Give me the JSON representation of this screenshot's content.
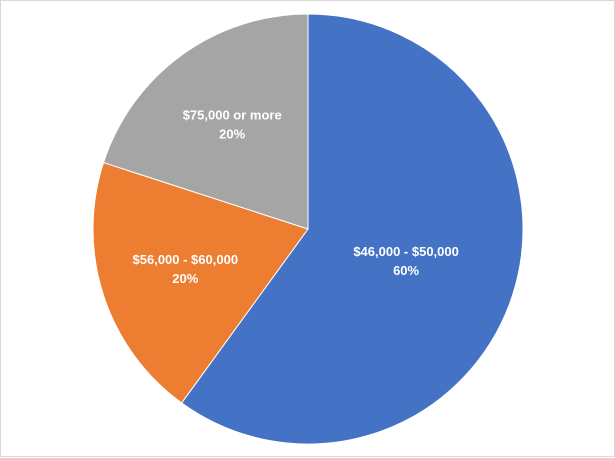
{
  "chart_data": {
    "type": "pie",
    "title": "",
    "slices": [
      {
        "label": "$46,000 - $50,000",
        "value": 60,
        "percent_label": "60%",
        "color": "#4472c4"
      },
      {
        "label": "$56,000 - $60,000",
        "value": 20,
        "percent_label": "20%",
        "color": "#ed7d31"
      },
      {
        "label": "$75,000 or more",
        "value": 20,
        "percent_label": "20%",
        "color": "#a5a5a5"
      }
    ],
    "start": "12 o'clock",
    "direction": "clockwise",
    "legend": "none",
    "data_labels": "inside"
  }
}
